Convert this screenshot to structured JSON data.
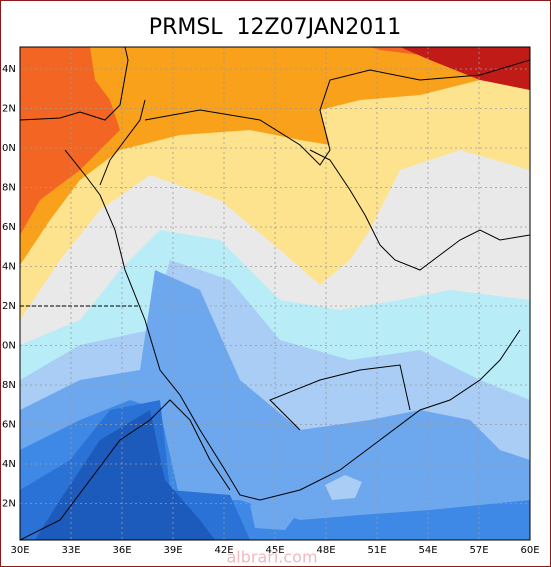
{
  "header": {
    "title": "PRMSL  12Z07JAN2011"
  },
  "lat_labels": [
    "4N",
    "2N",
    "0N",
    "8N",
    "6N",
    "4N",
    "2N",
    "0N",
    "8N",
    "6N",
    "4N",
    "2N"
  ],
  "lon_labels": [
    "30E",
    "33E",
    "36E",
    "39E",
    "42E",
    "45E",
    "48E",
    "51E",
    "54E",
    "57E",
    "60E"
  ],
  "watermark": "albrari.com"
}
